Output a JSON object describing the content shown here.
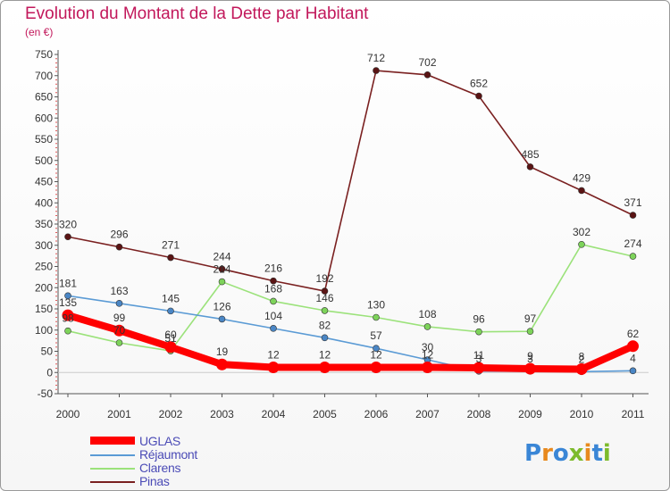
{
  "title": "Evolution du Montant de la Dette par Habitant",
  "subtitle": "(en €)",
  "logo": {
    "text": "Proxiti",
    "colors": [
      "#3a86d6",
      "#e8891d",
      "#3a86d6",
      "#7dbb2c",
      "#e8891d",
      "#3a86d6",
      "#7dbb2c"
    ]
  },
  "chart_data": {
    "type": "line",
    "x": [
      "2000",
      "2001",
      "2002",
      "2003",
      "2004",
      "2005",
      "2006",
      "2007",
      "2008",
      "2009",
      "2010",
      "2011"
    ],
    "ylim": [
      -50,
      750
    ],
    "yticks": [
      -50,
      0,
      50,
      100,
      150,
      200,
      250,
      300,
      350,
      400,
      450,
      500,
      550,
      600,
      650,
      700,
      750
    ],
    "grid": false,
    "legend_position": "bottom-left",
    "series": [
      {
        "name": "UGLAS",
        "color": "#ff0000",
        "marker": "#ff0000",
        "width": "thick",
        "values": [
          135,
          99,
          60,
          19,
          12,
          12,
          12,
          12,
          11,
          9,
          8,
          62
        ],
        "labels": [
          "135",
          "99",
          "60",
          "19",
          "12",
          "12",
          "12",
          "12",
          "11",
          "9",
          "8",
          "62"
        ]
      },
      {
        "name": "Réjaumont",
        "color": "#5b9bd5",
        "marker": "#4a86c5",
        "width": "thin",
        "values": [
          181,
          163,
          145,
          126,
          104,
          82,
          57,
          30,
          3,
          3,
          2,
          4
        ],
        "labels": [
          "181",
          "163",
          "145",
          "126",
          "104",
          "82",
          "57",
          "30",
          "3",
          "3",
          "2",
          "4"
        ]
      },
      {
        "name": "Clarens",
        "color": "#9be27a",
        "marker": "#7dd35a",
        "width": "thin",
        "values": [
          98,
          70,
          51,
          214,
          168,
          146,
          130,
          108,
          96,
          97,
          302,
          274
        ],
        "labels": [
          "98",
          "70",
          "51",
          "214",
          "168",
          "146",
          "130",
          "108",
          "96",
          "97",
          "302",
          "274"
        ]
      },
      {
        "name": "Pinas",
        "color": "#7a2020",
        "marker": "#5a1414",
        "width": "thin",
        "values": [
          320,
          296,
          271,
          244,
          216,
          192,
          712,
          702,
          652,
          485,
          429,
          371
        ],
        "labels": [
          "320",
          "296",
          "271",
          "244",
          "216",
          "192",
          "712",
          "702",
          "652",
          "485",
          "429",
          "371"
        ]
      }
    ]
  }
}
